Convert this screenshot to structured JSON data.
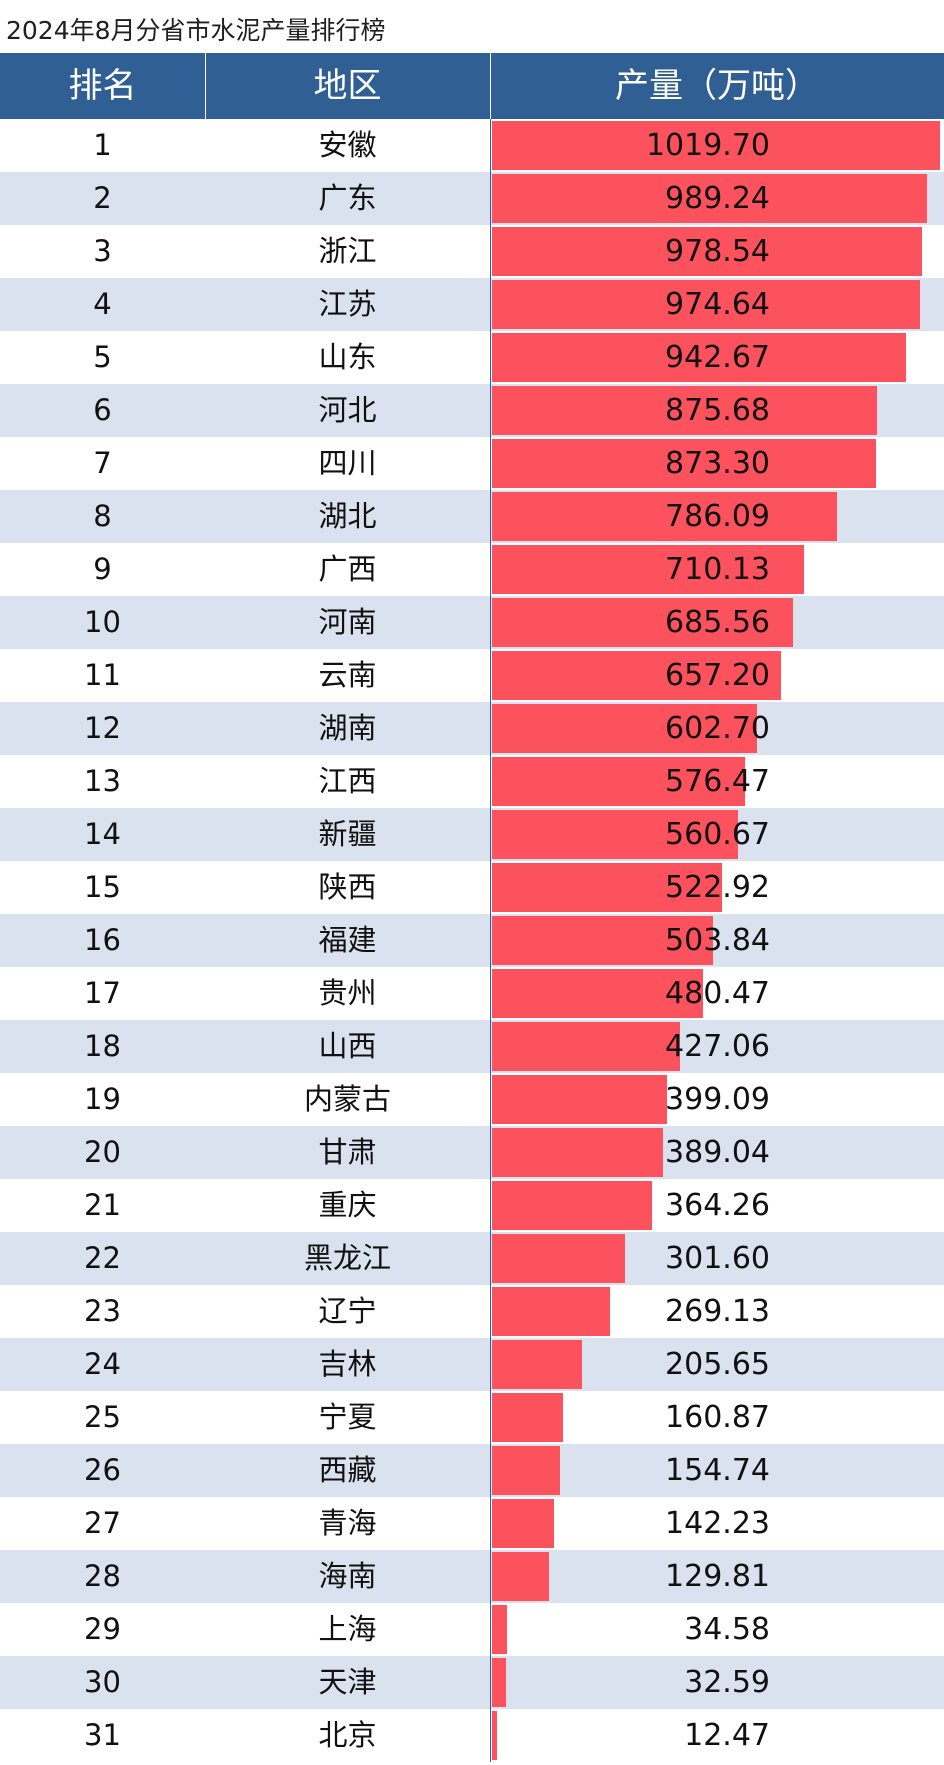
{
  "chart_data": {
    "type": "bar",
    "orientation": "horizontal",
    "title": "2024年8月分省市水泥产量排行榜",
    "columns": [
      "排名",
      "地区",
      "产量（万吨）"
    ],
    "rows": [
      {
        "rank": "1",
        "region": "安徽",
        "value": "1019.70"
      },
      {
        "rank": "2",
        "region": "广东",
        "value": "989.24"
      },
      {
        "rank": "3",
        "region": "浙江",
        "value": "978.54"
      },
      {
        "rank": "4",
        "region": "江苏",
        "value": "974.64"
      },
      {
        "rank": "5",
        "region": "山东",
        "value": "942.67"
      },
      {
        "rank": "6",
        "region": "河北",
        "value": "875.68"
      },
      {
        "rank": "7",
        "region": "四川",
        "value": "873.30"
      },
      {
        "rank": "8",
        "region": "湖北",
        "value": "786.09"
      },
      {
        "rank": "9",
        "region": "广西",
        "value": "710.13"
      },
      {
        "rank": "10",
        "region": "河南",
        "value": "685.56"
      },
      {
        "rank": "11",
        "region": "云南",
        "value": "657.20"
      },
      {
        "rank": "12",
        "region": "湖南",
        "value": "602.70"
      },
      {
        "rank": "13",
        "region": "江西",
        "value": "576.47"
      },
      {
        "rank": "14",
        "region": "新疆",
        "value": "560.67"
      },
      {
        "rank": "15",
        "region": "陕西",
        "value": "522.92"
      },
      {
        "rank": "16",
        "region": "福建",
        "value": "503.84"
      },
      {
        "rank": "17",
        "region": "贵州",
        "value": "480.47"
      },
      {
        "rank": "18",
        "region": "山西",
        "value": "427.06"
      },
      {
        "rank": "19",
        "region": "内蒙古",
        "value": "399.09"
      },
      {
        "rank": "20",
        "region": "甘肃",
        "value": "389.04"
      },
      {
        "rank": "21",
        "region": "重庆",
        "value": "364.26"
      },
      {
        "rank": "22",
        "region": "黑龙江",
        "value": "301.60"
      },
      {
        "rank": "23",
        "region": "辽宁",
        "value": "269.13"
      },
      {
        "rank": "24",
        "region": "吉林",
        "value": "205.65"
      },
      {
        "rank": "25",
        "region": "宁夏",
        "value": "160.87"
      },
      {
        "rank": "26",
        "region": "西藏",
        "value": "154.74"
      },
      {
        "rank": "27",
        "region": "青海",
        "value": "142.23"
      },
      {
        "rank": "28",
        "region": "海南",
        "value": "129.81"
      },
      {
        "rank": "29",
        "region": "上海",
        "value": "34.58"
      },
      {
        "rank": "30",
        "region": "天津",
        "value": "32.59"
      },
      {
        "rank": "31",
        "region": "北京",
        "value": "12.47"
      }
    ],
    "xlim": [
      0,
      1019.7
    ],
    "bar_color": "#fc525d",
    "header_color": "#2f5f93",
    "alt_row_color": "#d9e2ee"
  }
}
